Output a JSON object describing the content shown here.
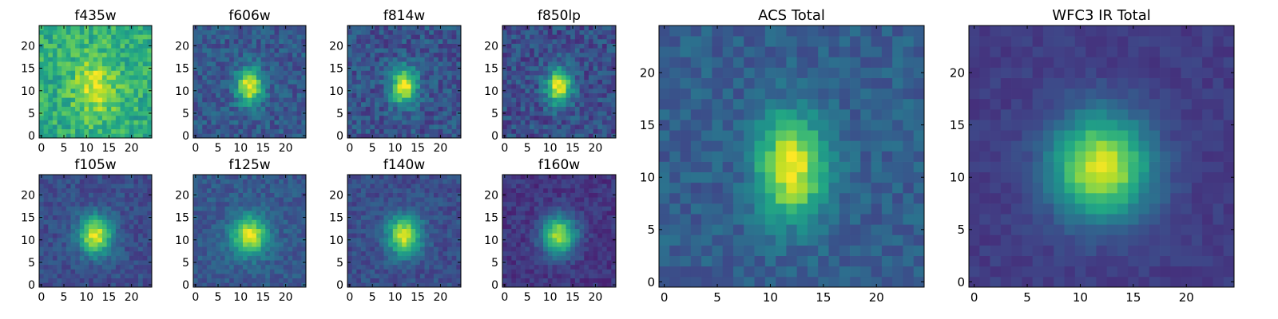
{
  "chart_data": [
    {
      "type": "heatmap",
      "title": "f435w",
      "xlim": [
        0,
        24
      ],
      "ylim": [
        0,
        24
      ],
      "xticks": [
        0,
        5,
        10,
        15,
        20
      ],
      "yticks": [
        0,
        5,
        10,
        15,
        20
      ],
      "cmap": "viridis",
      "peak": [
        12,
        11
      ],
      "sx": 3.5,
      "sy": 5.0,
      "amp": 0.3,
      "bg": 0.62,
      "noise": 0.28,
      "seed": 11
    },
    {
      "type": "heatmap",
      "title": "f606w",
      "xlim": [
        0,
        24
      ],
      "ylim": [
        0,
        24
      ],
      "xticks": [
        0,
        5,
        10,
        15,
        20
      ],
      "yticks": [
        0,
        5,
        10,
        15,
        20
      ],
      "cmap": "viridis",
      "peak": [
        12,
        11
      ],
      "sx": 2.0,
      "sy": 2.8,
      "amp": 0.72,
      "bg": 0.28,
      "noise": 0.22,
      "seed": 23
    },
    {
      "type": "heatmap",
      "title": "f814w",
      "xlim": [
        0,
        24
      ],
      "ylim": [
        0,
        24
      ],
      "xticks": [
        0,
        5,
        10,
        15,
        20
      ],
      "yticks": [
        0,
        5,
        10,
        15,
        20
      ],
      "cmap": "viridis",
      "peak": [
        12,
        11
      ],
      "sx": 2.0,
      "sy": 2.8,
      "amp": 0.74,
      "bg": 0.26,
      "noise": 0.24,
      "seed": 37
    },
    {
      "type": "heatmap",
      "title": "f850lp",
      "xlim": [
        0,
        24
      ],
      "ylim": [
        0,
        24
      ],
      "xticks": [
        0,
        5,
        10,
        15,
        20
      ],
      "yticks": [
        0,
        5,
        10,
        15,
        20
      ],
      "cmap": "viridis",
      "peak": [
        12,
        11
      ],
      "sx": 2.0,
      "sy": 2.8,
      "amp": 0.74,
      "bg": 0.24,
      "noise": 0.24,
      "seed": 41
    },
    {
      "type": "heatmap",
      "title": "f105w",
      "xlim": [
        0,
        24
      ],
      "ylim": [
        0,
        24
      ],
      "xticks": [
        0,
        5,
        10,
        15,
        20
      ],
      "yticks": [
        0,
        5,
        10,
        15,
        20
      ],
      "cmap": "viridis",
      "peak": [
        12,
        11
      ],
      "sx": 2.6,
      "sy": 3.0,
      "amp": 0.72,
      "bg": 0.24,
      "noise": 0.16,
      "seed": 53
    },
    {
      "type": "heatmap",
      "title": "f125w",
      "xlim": [
        0,
        24
      ],
      "ylim": [
        0,
        24
      ],
      "xticks": [
        0,
        5,
        10,
        15,
        20
      ],
      "yticks": [
        0,
        5,
        10,
        15,
        20
      ],
      "cmap": "viridis",
      "peak": [
        12,
        11
      ],
      "sx": 2.8,
      "sy": 3.0,
      "amp": 0.68,
      "bg": 0.28,
      "noise": 0.16,
      "seed": 67
    },
    {
      "type": "heatmap",
      "title": "f140w",
      "xlim": [
        0,
        24
      ],
      "ylim": [
        0,
        24
      ],
      "xticks": [
        0,
        5,
        10,
        15,
        20
      ],
      "yticks": [
        0,
        5,
        10,
        15,
        20
      ],
      "cmap": "viridis",
      "peak": [
        12,
        11
      ],
      "sx": 2.6,
      "sy": 3.0,
      "amp": 0.7,
      "bg": 0.24,
      "noise": 0.16,
      "seed": 71
    },
    {
      "type": "heatmap",
      "title": "f160w",
      "xlim": [
        0,
        24
      ],
      "ylim": [
        0,
        24
      ],
      "xticks": [
        0,
        5,
        10,
        15,
        20
      ],
      "yticks": [
        0,
        5,
        10,
        15,
        20
      ],
      "cmap": "viridis",
      "peak": [
        12,
        11
      ],
      "sx": 2.6,
      "sy": 3.0,
      "amp": 0.74,
      "bg": 0.16,
      "noise": 0.14,
      "seed": 83
    },
    {
      "type": "heatmap",
      "title": "ACS Total",
      "xlim": [
        0,
        24
      ],
      "ylim": [
        0,
        24
      ],
      "xticks": [
        0,
        5,
        10,
        15,
        20
      ],
      "yticks": [
        0,
        5,
        10,
        15,
        20
      ],
      "cmap": "viridis",
      "peak": [
        12,
        11
      ],
      "sx": 2.2,
      "sy": 3.4,
      "amp": 0.7,
      "bg": 0.3,
      "noise": 0.16,
      "seed": 97
    },
    {
      "type": "heatmap",
      "title": "WFC3 IR Total",
      "xlim": [
        0,
        24
      ],
      "ylim": [
        0,
        24
      ],
      "xticks": [
        0,
        5,
        10,
        15,
        20
      ],
      "yticks": [
        0,
        5,
        10,
        15,
        20
      ],
      "cmap": "viridis",
      "peak": [
        12,
        11
      ],
      "sx": 3.2,
      "sy": 3.4,
      "amp": 0.78,
      "bg": 0.18,
      "noise": 0.08,
      "seed": 101
    }
  ]
}
